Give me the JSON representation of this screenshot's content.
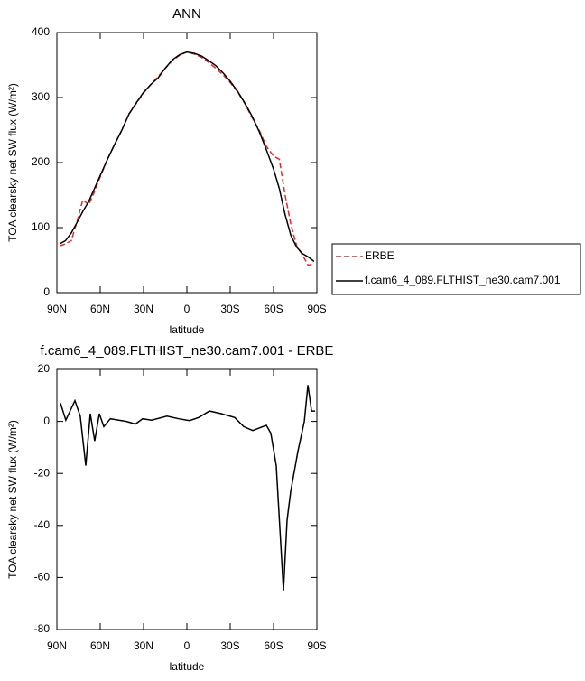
{
  "chart_data": [
    {
      "type": "line",
      "title": "ANN",
      "xlabel": "latitude",
      "ylabel": "TOA clearsky net SW flux (W/m²)",
      "x": [
        88,
        84,
        80,
        76,
        72,
        68,
        64,
        60,
        55,
        50,
        45,
        40,
        35,
        30,
        25,
        20,
        15,
        10,
        5,
        0,
        -5,
        -10,
        -15,
        -20,
        -25,
        -30,
        -35,
        -40,
        -45,
        -50,
        -55,
        -60,
        -64,
        -68,
        -72,
        -76,
        -80,
        -84,
        -88
      ],
      "series": [
        {
          "name": "ERBE",
          "color": "#e8282a",
          "line_style": "dashed",
          "values": [
            72,
            75,
            80,
            110,
            143,
            135,
            155,
            178,
            205,
            228,
            250,
            275,
            291,
            307,
            320,
            332,
            345,
            357,
            365,
            370,
            367,
            362,
            354,
            345,
            335,
            323,
            309,
            291,
            270,
            250,
            225,
            210,
            205,
            150,
            105,
            72,
            58,
            42,
            45
          ]
        },
        {
          "name": "f.cam6_4_089.FLTHIST_ne30.cam7.001",
          "color": "#000000",
          "line_style": "solid",
          "values": [
            75,
            80,
            92,
            108,
            125,
            140,
            160,
            180,
            205,
            228,
            250,
            275,
            292,
            308,
            320,
            330,
            345,
            358,
            366,
            370,
            368,
            364,
            357,
            349,
            338,
            325,
            310,
            292,
            272,
            248,
            220,
            190,
            160,
            120,
            88,
            70,
            60,
            55,
            48
          ]
        }
      ],
      "xlim": [
        90,
        -90
      ],
      "xticks": [
        {
          "value": 90,
          "label": "90N"
        },
        {
          "value": 60,
          "label": "60N"
        },
        {
          "value": 30,
          "label": "30N"
        },
        0,
        {
          "value": -30,
          "label": "30S"
        },
        {
          "value": -60,
          "label": "60S"
        },
        {
          "value": -90,
          "label": "90S"
        }
      ],
      "ylim": [
        0,
        400
      ],
      "yticks": [
        0,
        100,
        200,
        300,
        400
      ],
      "legend": "right"
    },
    {
      "type": "line",
      "title": "f.cam6_4_089.FLTHIST_ne30.cam7.001 - ERBE",
      "xlabel": "latitude",
      "ylabel": "TOA clearsky net SW flux (W/m²)",
      "x": [
        87.5,
        83.8,
        77.5,
        73.8,
        70,
        66.9,
        63.8,
        60.6,
        57.5,
        53,
        41.9,
        35.6,
        30.6,
        24.4,
        13.8,
        5.6,
        -1.9,
        -8.1,
        -15.6,
        -23.8,
        -33.1,
        -39.4,
        -45.6,
        -55,
        -58.1,
        -61.9,
        -66.9,
        -69.4,
        -71.9,
        -76.9,
        -81.3,
        -83.8,
        -86.3,
        -88.8
      ],
      "series": [
        {
          "name": "f.cam6_4_089.FLTHIST_ne30.cam7.001 - ERBE",
          "color": "#000000",
          "line_style": "solid",
          "values": [
            7,
            0.5,
            8,
            2,
            -17,
            3,
            -7.5,
            3,
            -2,
            1,
            0,
            -1,
            1,
            0.5,
            2,
            1,
            0.3,
            1.5,
            4,
            3,
            1.5,
            -2,
            -3.5,
            -1.5,
            -4.5,
            -17,
            -65,
            -38,
            -27,
            -11.5,
            0,
            14,
            4,
            4
          ]
        }
      ],
      "xlim": [
        90,
        -90
      ],
      "xticks": [
        {
          "value": 90,
          "label": "90N"
        },
        {
          "value": 60,
          "label": "60N"
        },
        {
          "value": 30,
          "label": "30N"
        },
        0,
        {
          "value": -30,
          "label": "30S"
        },
        {
          "value": -60,
          "label": "60S"
        },
        {
          "value": -90,
          "label": "90S"
        }
      ],
      "ylim": [
        -80,
        20
      ],
      "yticks": [
        -80,
        -60,
        -40,
        -20,
        0,
        20
      ]
    }
  ]
}
